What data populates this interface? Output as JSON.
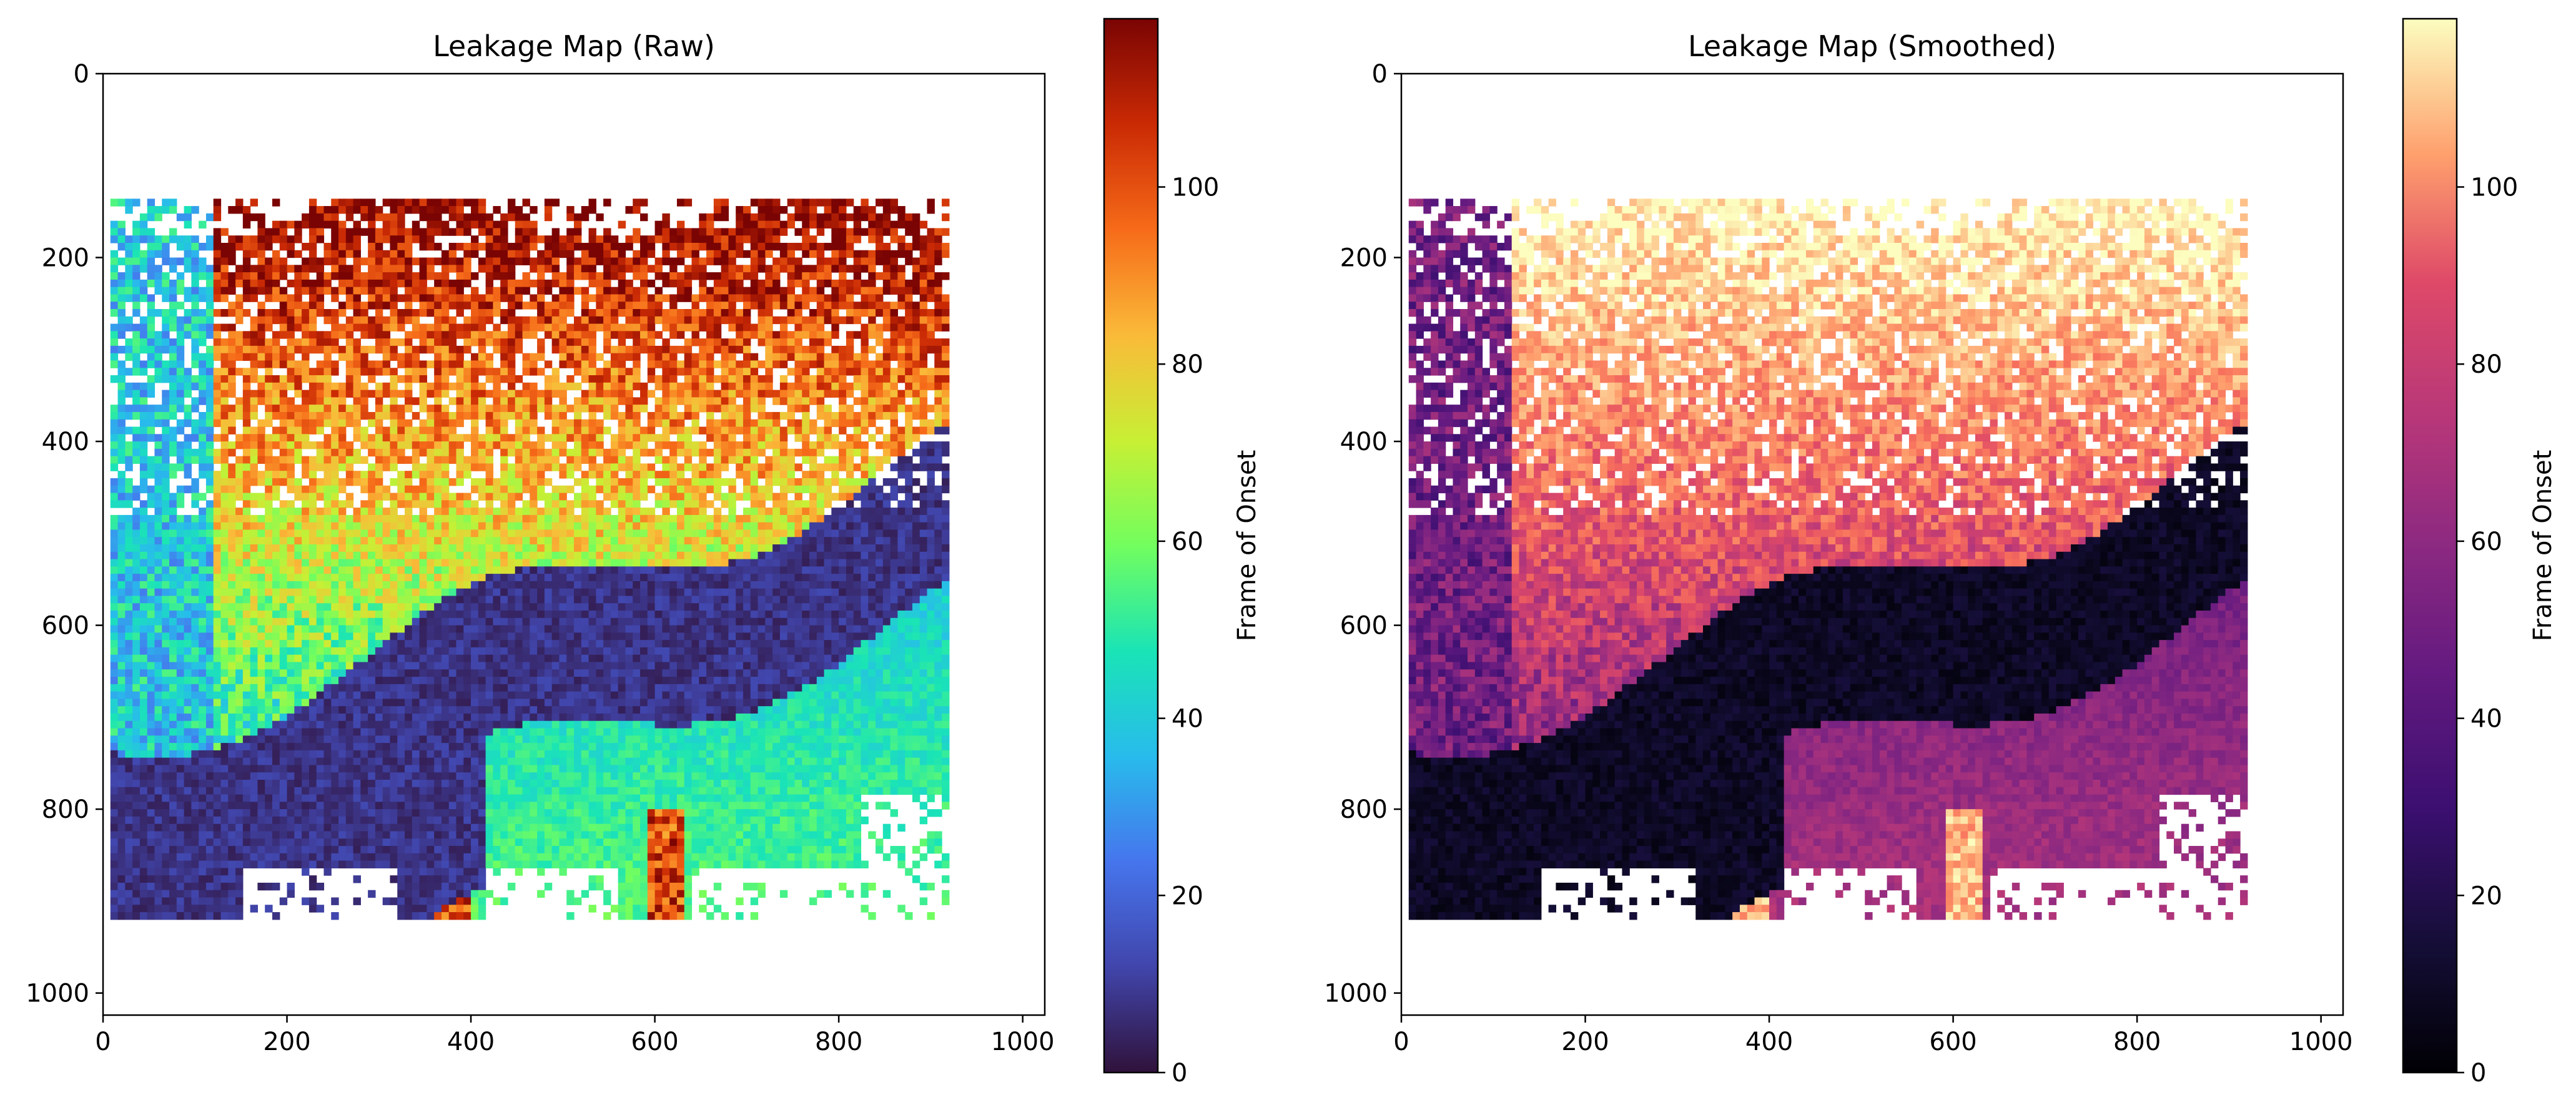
{
  "chart_data": [
    {
      "type": "heatmap",
      "title": "Leakage Map (Raw)",
      "colormap": "turbo",
      "xlim": [
        0,
        1024
      ],
      "ylim": [
        1024,
        0
      ],
      "x_ticks": [
        0,
        200,
        400,
        600,
        800,
        1000
      ],
      "y_ticks": [
        0,
        200,
        400,
        600,
        800,
        1000
      ],
      "colorbar": {
        "label": "Frame of Onset",
        "range": [
          0,
          119
        ],
        "ticks": [
          0,
          20,
          40,
          60,
          80,
          100
        ]
      },
      "regions": [
        {
          "region": "upper band (y 150–500)",
          "value_range": [
            60,
            110
          ],
          "note": "mostly orange/yellow with scattered white gaps"
        },
        {
          "region": "diagonal dark streak (y 480–830)",
          "value_range": [
            0,
            15
          ]
        },
        {
          "region": "lower-right area (y 550–850)",
          "value_range": [
            35,
            55
          ]
        },
        {
          "region": "bottom blobs (x 330–620, y 800–920)",
          "value_range": [
            85,
            119
          ]
        }
      ]
    },
    {
      "type": "heatmap",
      "title": "Leakage Map (Smoothed)",
      "colormap": "magma",
      "xlim": [
        0,
        1024
      ],
      "ylim": [
        1024,
        0
      ],
      "x_ticks": [
        0,
        200,
        400,
        600,
        800,
        1000
      ],
      "y_ticks": [
        0,
        200,
        400,
        600,
        800,
        1000
      ],
      "colorbar": {
        "label": "Frame of Onset",
        "range": [
          0,
          119
        ],
        "ticks": [
          0,
          20,
          40,
          60,
          80,
          100
        ]
      },
      "regions": [
        {
          "region": "upper band (y 150–500)",
          "value_range": [
            60,
            110
          ]
        },
        {
          "region": "diagonal dark streak (y 480–830)",
          "value_range": [
            0,
            15
          ]
        },
        {
          "region": "lower-right area (y 550–850)",
          "value_range": [
            35,
            55
          ]
        },
        {
          "region": "bottom blobs (x 330–620, y 800–920)",
          "value_range": [
            85,
            119
          ]
        }
      ]
    }
  ]
}
